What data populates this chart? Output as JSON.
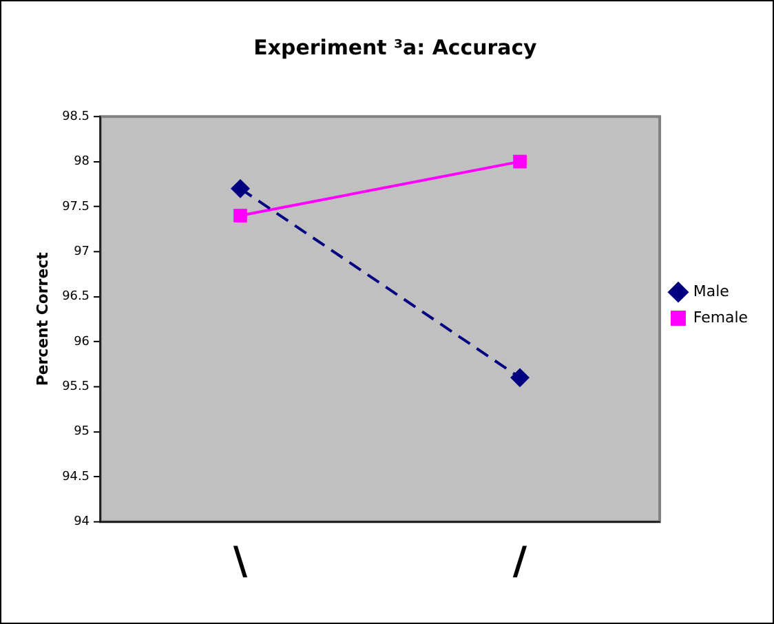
{
  "chart_data": {
    "type": "line",
    "title": "Experiment ³a: Accuracy",
    "ylabel": "Percent Correct",
    "categories": [
      "\\",
      "/"
    ],
    "series": [
      {
        "name": "Male",
        "color": "#000080",
        "values": [
          97.7,
          95.6
        ],
        "marker": "diamond",
        "line_style": "dashed"
      },
      {
        "name": "Female",
        "color": "#ff00ff",
        "values": [
          97.4,
          98.0
        ],
        "marker": "square",
        "line_style": "solid"
      }
    ],
    "ylim": [
      94,
      98.5
    ],
    "yticks": [
      94,
      94.5,
      95,
      95.5,
      96,
      96.5,
      97,
      97.5,
      98,
      98.5
    ],
    "grid": false,
    "legend": "right"
  }
}
